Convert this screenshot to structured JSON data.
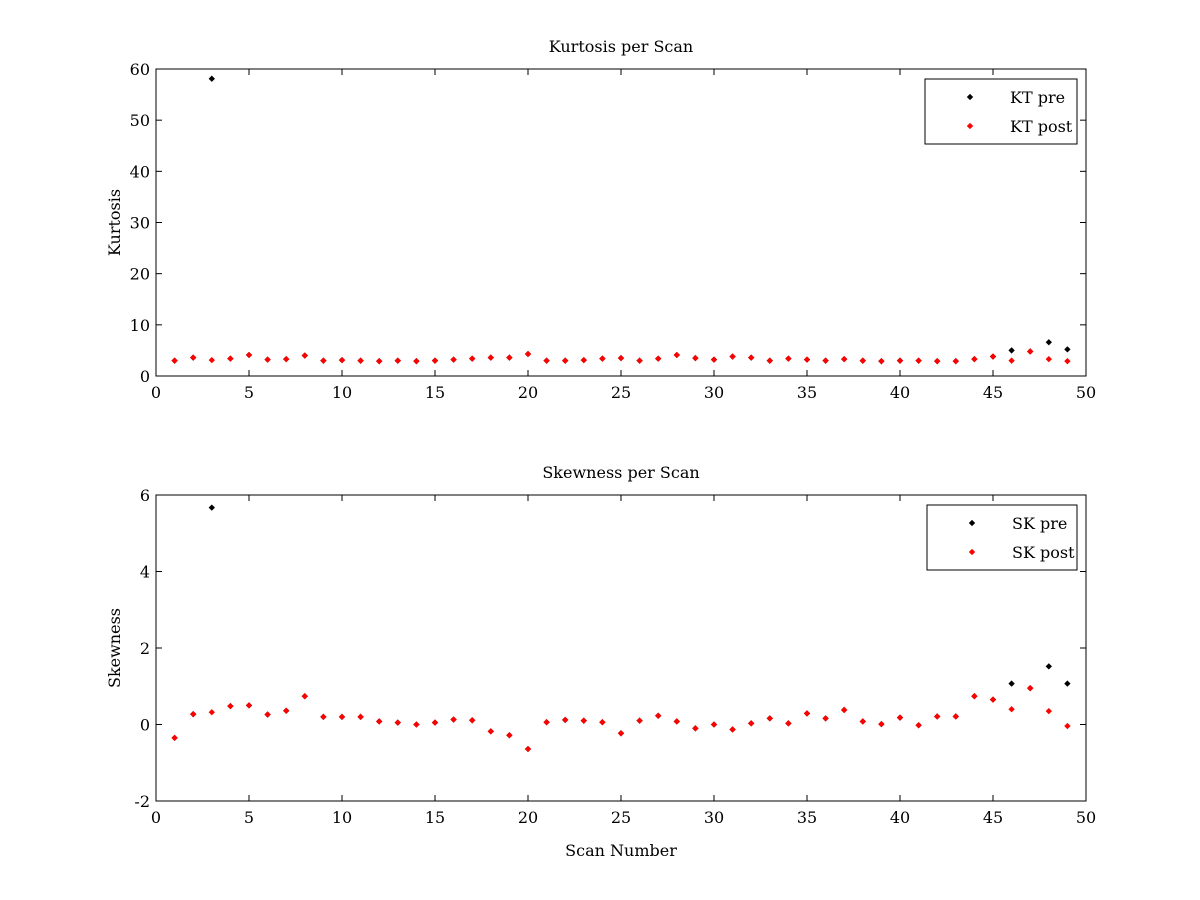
{
  "chart_data": [
    {
      "type": "scatter",
      "title": "Kurtosis per Scan",
      "xlabel": "",
      "ylabel": "Kurtosis",
      "xlim": [
        0,
        50
      ],
      "ylim": [
        0,
        60
      ],
      "xticks": [
        0,
        5,
        10,
        15,
        20,
        25,
        30,
        35,
        40,
        45,
        50
      ],
      "yticks": [
        0,
        10,
        20,
        30,
        40,
        50,
        60
      ],
      "grid": false,
      "legend_position": "top-right",
      "series": [
        {
          "name": "KT pre",
          "color": "#000000",
          "x": [
            1,
            2,
            3,
            4,
            5,
            6,
            7,
            8,
            9,
            10,
            11,
            12,
            13,
            14,
            15,
            16,
            17,
            18,
            19,
            20,
            21,
            22,
            23,
            24,
            25,
            26,
            27,
            28,
            29,
            30,
            31,
            32,
            33,
            34,
            35,
            36,
            37,
            38,
            39,
            40,
            41,
            42,
            43,
            44,
            45,
            46,
            47,
            48,
            49
          ],
          "y": [
            3.0,
            3.6,
            58.1,
            3.4,
            4.1,
            3.2,
            3.3,
            4.0,
            3.0,
            3.1,
            3.0,
            2.9,
            3.0,
            2.9,
            3.0,
            3.2,
            3.4,
            3.6,
            3.6,
            4.3,
            3.0,
            3.0,
            3.1,
            3.4,
            3.5,
            3.0,
            3.4,
            4.1,
            3.5,
            3.2,
            3.8,
            3.6,
            3.0,
            3.4,
            3.2,
            3.0,
            3.3,
            3.0,
            2.9,
            3.0,
            3.0,
            2.9,
            2.9,
            3.3,
            3.8,
            5.0,
            4.8,
            6.6,
            5.2
          ]
        },
        {
          "name": "KT post",
          "color": "#ff0000",
          "x": [
            1,
            2,
            3,
            4,
            5,
            6,
            7,
            8,
            9,
            10,
            11,
            12,
            13,
            14,
            15,
            16,
            17,
            18,
            19,
            20,
            21,
            22,
            23,
            24,
            25,
            26,
            27,
            28,
            29,
            30,
            31,
            32,
            33,
            34,
            35,
            36,
            37,
            38,
            39,
            40,
            41,
            42,
            43,
            44,
            45,
            46,
            47,
            48,
            49
          ],
          "y": [
            3.0,
            3.6,
            3.1,
            3.4,
            4.1,
            3.2,
            3.3,
            4.0,
            3.0,
            3.1,
            3.0,
            2.9,
            3.0,
            2.9,
            3.0,
            3.2,
            3.4,
            3.6,
            3.6,
            4.3,
            3.0,
            3.0,
            3.1,
            3.4,
            3.5,
            3.0,
            3.4,
            4.1,
            3.5,
            3.2,
            3.8,
            3.6,
            3.0,
            3.4,
            3.2,
            3.0,
            3.3,
            3.0,
            2.9,
            3.0,
            3.0,
            2.9,
            2.9,
            3.3,
            3.8,
            3.0,
            4.8,
            3.3,
            2.9
          ]
        }
      ]
    },
    {
      "type": "scatter",
      "title": "Skewness per Scan",
      "xlabel": "Scan Number",
      "ylabel": "Skewness",
      "xlim": [
        0,
        50
      ],
      "ylim": [
        -2,
        6
      ],
      "xticks": [
        0,
        5,
        10,
        15,
        20,
        25,
        30,
        35,
        40,
        45,
        50
      ],
      "yticks": [
        -2,
        0,
        2,
        4,
        6
      ],
      "grid": false,
      "legend_position": "top-right",
      "series": [
        {
          "name": "SK pre",
          "color": "#000000",
          "x": [
            1,
            2,
            3,
            4,
            5,
            6,
            7,
            8,
            9,
            10,
            11,
            12,
            13,
            14,
            15,
            16,
            17,
            18,
            19,
            20,
            21,
            22,
            23,
            24,
            25,
            26,
            27,
            28,
            29,
            30,
            31,
            32,
            33,
            34,
            35,
            36,
            37,
            38,
            39,
            40,
            41,
            42,
            43,
            44,
            45,
            46,
            47,
            48,
            49
          ],
          "y": [
            -0.35,
            0.27,
            5.67,
            0.48,
            0.5,
            0.26,
            0.36,
            0.74,
            0.2,
            0.2,
            0.2,
            0.08,
            0.05,
            0.0,
            0.05,
            0.13,
            0.11,
            -0.18,
            -0.28,
            -0.64,
            0.06,
            0.12,
            0.1,
            0.06,
            -0.23,
            0.1,
            0.23,
            0.08,
            -0.1,
            0.0,
            -0.13,
            0.03,
            0.16,
            0.03,
            0.29,
            0.16,
            0.38,
            0.08,
            0.01,
            0.18,
            -0.02,
            0.21,
            0.21,
            0.74,
            0.65,
            1.07,
            0.95,
            1.52,
            1.07
          ]
        },
        {
          "name": "SK post",
          "color": "#ff0000",
          "x": [
            1,
            2,
            3,
            4,
            5,
            6,
            7,
            8,
            9,
            10,
            11,
            12,
            13,
            14,
            15,
            16,
            17,
            18,
            19,
            20,
            21,
            22,
            23,
            24,
            25,
            26,
            27,
            28,
            29,
            30,
            31,
            32,
            33,
            34,
            35,
            36,
            37,
            38,
            39,
            40,
            41,
            42,
            43,
            44,
            45,
            46,
            47,
            48,
            49
          ],
          "y": [
            -0.35,
            0.27,
            0.32,
            0.48,
            0.5,
            0.26,
            0.36,
            0.74,
            0.2,
            0.2,
            0.2,
            0.08,
            0.05,
            0.0,
            0.05,
            0.13,
            0.11,
            -0.18,
            -0.28,
            -0.64,
            0.06,
            0.12,
            0.1,
            0.06,
            -0.23,
            0.1,
            0.23,
            0.08,
            -0.1,
            0.0,
            -0.13,
            0.03,
            0.16,
            0.03,
            0.29,
            0.16,
            0.38,
            0.08,
            0.01,
            0.18,
            -0.02,
            0.21,
            0.21,
            0.74,
            0.65,
            0.4,
            0.95,
            0.35,
            -0.04
          ]
        }
      ]
    }
  ]
}
